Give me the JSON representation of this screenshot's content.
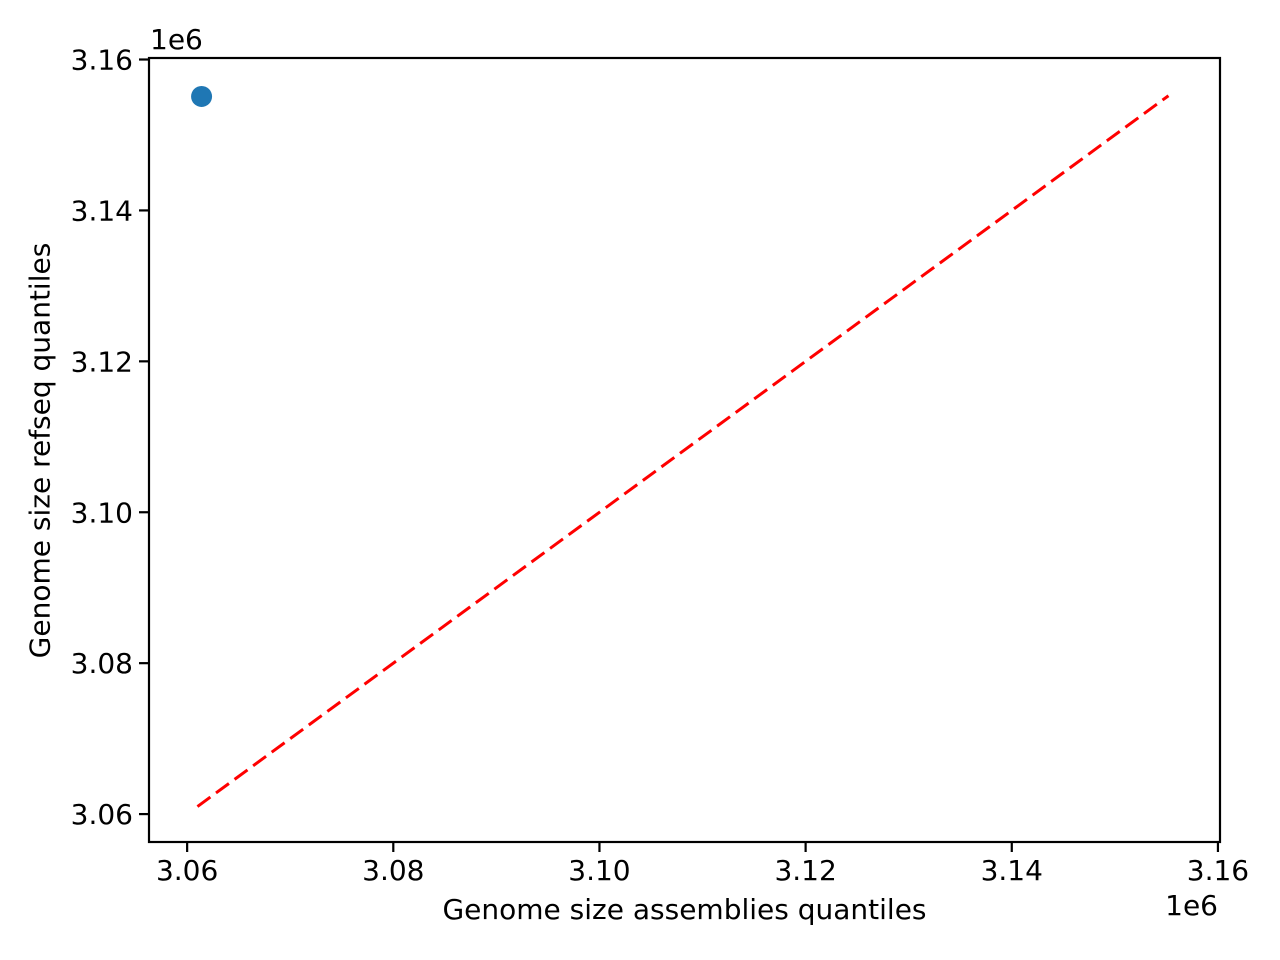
{
  "figure": {
    "background": "#ffffff",
    "text_color": "#000000",
    "spine_color": "#000000"
  },
  "chart_data": {
    "type": "scatter",
    "title": "",
    "xlabel": "Genome size assemblies quantiles",
    "ylabel": "Genome size refseq quantiles",
    "x_offset_text": "1e6",
    "y_offset_text": "1e6",
    "xlim": [
      3056300,
      3160200
    ],
    "ylim": [
      3056300,
      3160200
    ],
    "grid": false,
    "legend": false,
    "x_ticks": {
      "values": [
        3060000,
        3080000,
        3100000,
        3120000,
        3140000,
        3160000
      ],
      "labels": [
        "3.06",
        "3.08",
        "3.10",
        "3.12",
        "3.14",
        "3.16"
      ]
    },
    "y_ticks": {
      "values": [
        3060000,
        3080000,
        3100000,
        3120000,
        3140000,
        3160000
      ],
      "labels": [
        "3.06",
        "3.08",
        "3.10",
        "3.12",
        "3.14",
        "3.16"
      ]
    },
    "series": [
      {
        "name": "identity-reference-line",
        "type": "line",
        "color": "#ff0000",
        "linestyle": "dashed",
        "points": [
          [
            3061000,
            3061000
          ],
          [
            3155200,
            3155200
          ]
        ]
      },
      {
        "name": "quantile-points",
        "type": "scatter",
        "color": "#1f77b4",
        "marker_radius_px": 10.5,
        "points": [
          [
            3061400,
            3155100
          ]
        ]
      }
    ]
  }
}
